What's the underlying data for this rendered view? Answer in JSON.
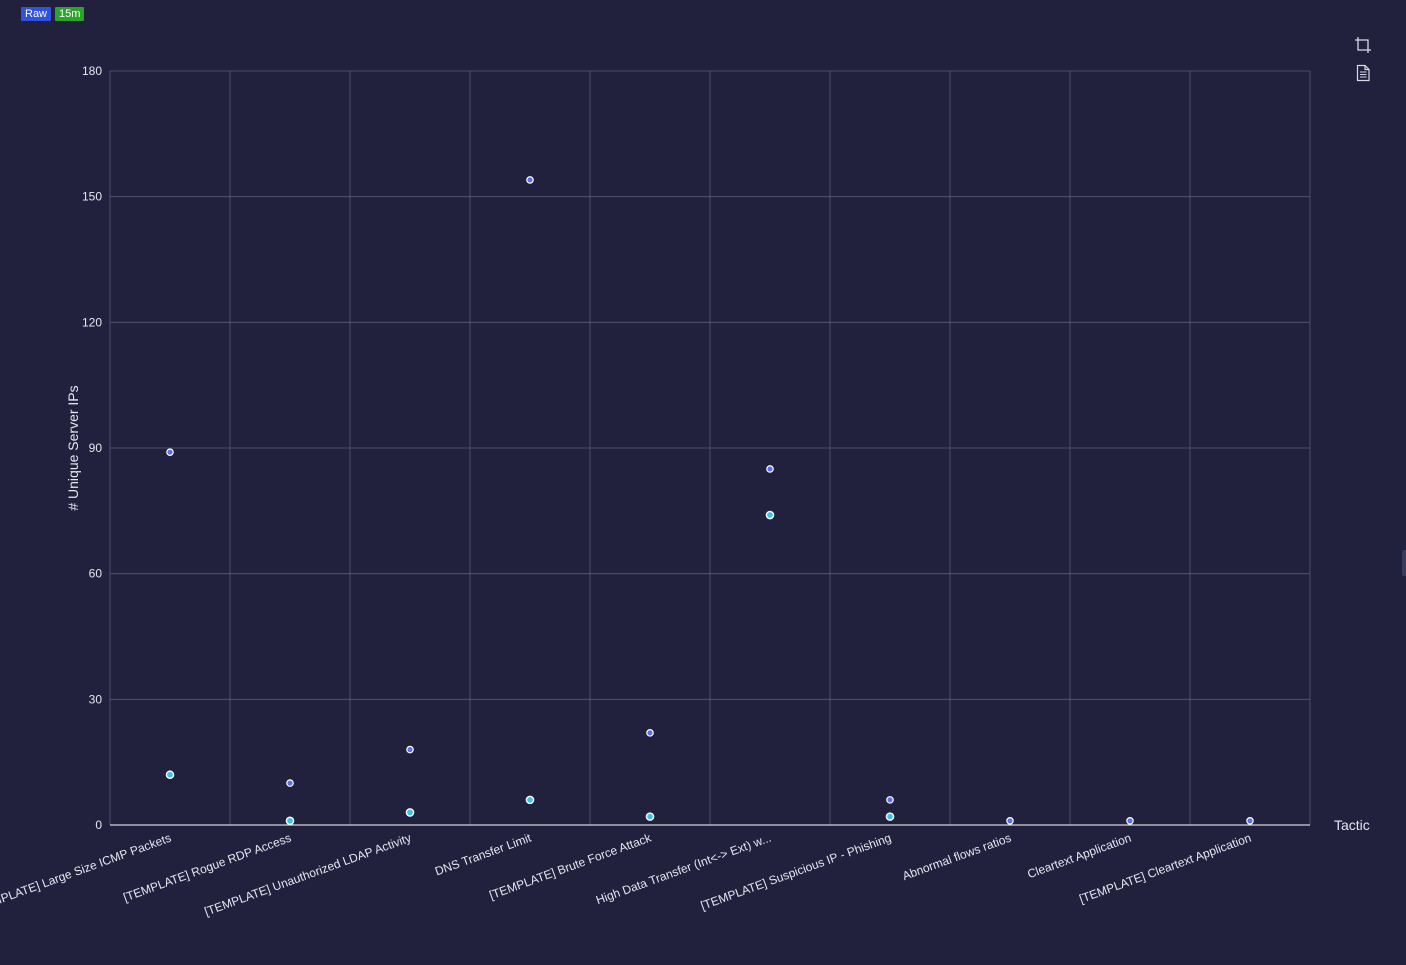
{
  "badges": {
    "raw": "Raw",
    "time": "15m"
  },
  "toolbox": {
    "zoom_icon": "crop-icon",
    "data_icon": "document-icon"
  },
  "colors": {
    "background": "#21213d",
    "grid": "#5a5a78",
    "axis": "#ffffff",
    "series1": "#5b6cf5",
    "series2": "#3cc3ec"
  },
  "chart_data": {
    "type": "scatter",
    "xlabel": "Tactic",
    "ylabel": "# Unique Server IPs",
    "ylim": [
      0,
      180
    ],
    "yticks": [
      0,
      30,
      60,
      90,
      120,
      150,
      180
    ],
    "grid": true,
    "categories": [
      "[TEMPLATE] Large Size ICMP Packets",
      "[TEMPLATE] Rogue RDP Access",
      "[TEMPLATE] Unauthorized LDAP Activity",
      "DNS Transfer Limit",
      "[TEMPLATE] Brute Force Attack",
      "High Data Transfer (Int<-> Ext) w...",
      "[TEMPLATE] Suspicious IP - Phishing",
      "Abnormal flows ratios",
      "Cleartext Application",
      "[TEMPLATE] Cleartext Application"
    ],
    "series": [
      {
        "values": [
          89,
          10,
          18,
          154,
          22,
          85,
          6,
          1,
          1,
          1
        ]
      },
      {
        "values": [
          12,
          1,
          3,
          6,
          2,
          74,
          2,
          null,
          null,
          null
        ]
      }
    ]
  }
}
